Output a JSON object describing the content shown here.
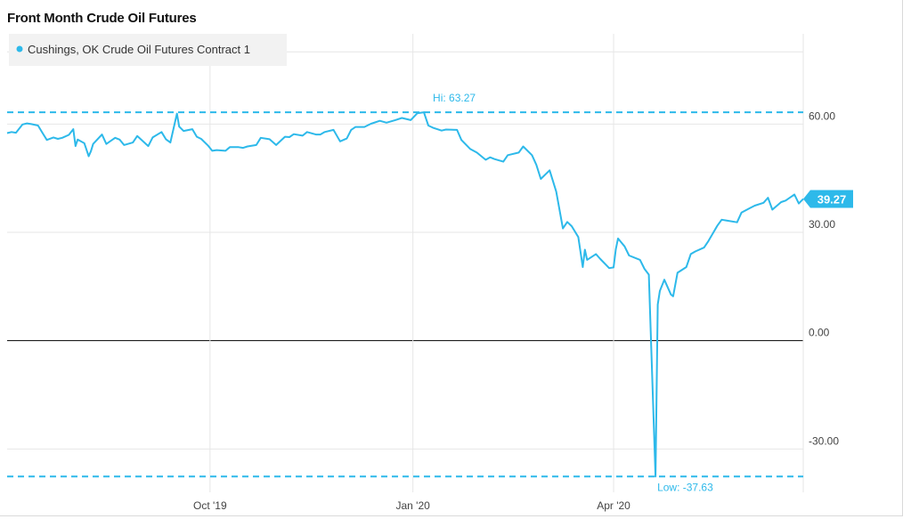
{
  "title": "Front Month Crude Oil Futures",
  "colors": {
    "series": "#2db9ea",
    "grid": "#e6e6e6",
    "zero_line": "#000000",
    "legend_bg": "#f2f2f2"
  },
  "chart_data": {
    "type": "line",
    "title": "Front Month Crude Oil Futures",
    "xlabel": "",
    "ylabel": "",
    "x_ticks": [
      {
        "label": "Oct '19",
        "date": "2019-10-01"
      },
      {
        "label": "Jan '20",
        "date": "2020-01-01"
      },
      {
        "label": "Apr '20",
        "date": "2020-04-01"
      }
    ],
    "y_ticks": [
      {
        "label": "60.00",
        "value": 60
      },
      {
        "label": "30.00",
        "value": 30
      },
      {
        "label": "0.00",
        "value": 0
      },
      {
        "label": "-30.00",
        "value": -30
      }
    ],
    "xlim": [
      "2019-07-01",
      "2020-06-26"
    ],
    "ylim": [
      -42,
      85
    ],
    "grid": true,
    "legend": {
      "position": "top-left",
      "entries": [
        "Cushings, OK Crude Oil Futures Contract 1"
      ]
    },
    "annotations": {
      "high": {
        "label": "Hi: 63.27",
        "value": 63.27,
        "date": "2020-01-06"
      },
      "low": {
        "label": "Low: -37.63",
        "value": -37.63,
        "date": "2020-04-20"
      },
      "last": {
        "label": "39.27",
        "value": 39.27,
        "date": "2020-06-26"
      }
    },
    "series": [
      {
        "name": "Cushings, OK Crude Oil Futures Contract 1",
        "points": [
          [
            "2019-07-01",
            57.5
          ],
          [
            "2019-07-03",
            57.8
          ],
          [
            "2019-07-05",
            57.6
          ],
          [
            "2019-07-08",
            59.9
          ],
          [
            "2019-07-10",
            60.2
          ],
          [
            "2019-07-12",
            60.0
          ],
          [
            "2019-07-15",
            59.6
          ],
          [
            "2019-07-17",
            57.6
          ],
          [
            "2019-07-19",
            55.6
          ],
          [
            "2019-07-22",
            56.3
          ],
          [
            "2019-07-24",
            55.9
          ],
          [
            "2019-07-26",
            56.2
          ],
          [
            "2019-07-29",
            57.0
          ],
          [
            "2019-07-31",
            58.6
          ],
          [
            "2019-08-01",
            53.9
          ],
          [
            "2019-08-02",
            55.7
          ],
          [
            "2019-08-05",
            54.7
          ],
          [
            "2019-08-07",
            51.1
          ],
          [
            "2019-08-08",
            52.5
          ],
          [
            "2019-08-09",
            54.5
          ],
          [
            "2019-08-13",
            57.1
          ],
          [
            "2019-08-15",
            54.5
          ],
          [
            "2019-08-19",
            56.2
          ],
          [
            "2019-08-21",
            55.7
          ],
          [
            "2019-08-23",
            54.2
          ],
          [
            "2019-08-27",
            54.9
          ],
          [
            "2019-08-29",
            56.7
          ],
          [
            "2019-09-03",
            53.9
          ],
          [
            "2019-09-05",
            56.3
          ],
          [
            "2019-09-09",
            57.8
          ],
          [
            "2019-09-11",
            55.8
          ],
          [
            "2019-09-13",
            54.9
          ],
          [
            "2019-09-16",
            62.9
          ],
          [
            "2019-09-17",
            59.3
          ],
          [
            "2019-09-19",
            58.1
          ],
          [
            "2019-09-23",
            58.6
          ],
          [
            "2019-09-25",
            56.5
          ],
          [
            "2019-09-27",
            55.9
          ],
          [
            "2019-09-30",
            54.1
          ],
          [
            "2019-10-02",
            52.6
          ],
          [
            "2019-10-04",
            52.8
          ],
          [
            "2019-10-08",
            52.6
          ],
          [
            "2019-10-10",
            53.6
          ],
          [
            "2019-10-14",
            53.6
          ],
          [
            "2019-10-16",
            53.4
          ],
          [
            "2019-10-18",
            53.8
          ],
          [
            "2019-10-22",
            54.2
          ],
          [
            "2019-10-24",
            56.2
          ],
          [
            "2019-10-28",
            55.8
          ],
          [
            "2019-10-31",
            54.2
          ],
          [
            "2019-11-04",
            56.5
          ],
          [
            "2019-11-06",
            56.4
          ],
          [
            "2019-11-08",
            57.2
          ],
          [
            "2019-11-12",
            56.8
          ],
          [
            "2019-11-14",
            57.8
          ],
          [
            "2019-11-18",
            57.1
          ],
          [
            "2019-11-20",
            57.1
          ],
          [
            "2019-11-22",
            57.8
          ],
          [
            "2019-11-26",
            58.4
          ],
          [
            "2019-11-29",
            55.2
          ],
          [
            "2019-12-02",
            56.0
          ],
          [
            "2019-12-04",
            58.4
          ],
          [
            "2019-12-06",
            59.2
          ],
          [
            "2019-12-10",
            59.2
          ],
          [
            "2019-12-13",
            60.1
          ],
          [
            "2019-12-17",
            60.9
          ],
          [
            "2019-12-20",
            60.4
          ],
          [
            "2019-12-24",
            61.1
          ],
          [
            "2019-12-27",
            61.7
          ],
          [
            "2019-12-31",
            61.1
          ],
          [
            "2020-01-03",
            63.0
          ],
          [
            "2020-01-06",
            63.27
          ],
          [
            "2020-01-08",
            59.6
          ],
          [
            "2020-01-10",
            59.0
          ],
          [
            "2020-01-14",
            58.2
          ],
          [
            "2020-01-16",
            58.5
          ],
          [
            "2020-01-21",
            58.4
          ],
          [
            "2020-01-23",
            55.6
          ],
          [
            "2020-01-27",
            53.1
          ],
          [
            "2020-01-30",
            52.1
          ],
          [
            "2020-02-03",
            50.1
          ],
          [
            "2020-02-05",
            50.8
          ],
          [
            "2020-02-07",
            50.3
          ],
          [
            "2020-02-11",
            49.6
          ],
          [
            "2020-02-13",
            51.4
          ],
          [
            "2020-02-18",
            52.1
          ],
          [
            "2020-02-20",
            53.8
          ],
          [
            "2020-02-24",
            51.4
          ],
          [
            "2020-02-26",
            48.7
          ],
          [
            "2020-02-28",
            44.8
          ],
          [
            "2020-03-03",
            47.2
          ],
          [
            "2020-03-06",
            41.3
          ],
          [
            "2020-03-09",
            31.1
          ],
          [
            "2020-03-11",
            32.9
          ],
          [
            "2020-03-13",
            31.7
          ],
          [
            "2020-03-16",
            28.7
          ],
          [
            "2020-03-18",
            20.4
          ],
          [
            "2020-03-19",
            25.2
          ],
          [
            "2020-03-20",
            22.4
          ],
          [
            "2020-03-24",
            24.0
          ],
          [
            "2020-03-26",
            22.6
          ],
          [
            "2020-03-30",
            20.1
          ],
          [
            "2020-04-01",
            20.3
          ],
          [
            "2020-04-02",
            25.3
          ],
          [
            "2020-04-03",
            28.3
          ],
          [
            "2020-04-06",
            26.1
          ],
          [
            "2020-04-08",
            23.6
          ],
          [
            "2020-04-13",
            22.4
          ],
          [
            "2020-04-15",
            19.9
          ],
          [
            "2020-04-17",
            18.3
          ],
          [
            "2020-04-20",
            -37.63
          ],
          [
            "2020-04-21",
            10.0
          ],
          [
            "2020-04-22",
            13.8
          ],
          [
            "2020-04-24",
            16.9
          ],
          [
            "2020-04-27",
            12.8
          ],
          [
            "2020-04-28",
            12.3
          ],
          [
            "2020-04-30",
            18.8
          ],
          [
            "2020-05-04",
            20.4
          ],
          [
            "2020-05-06",
            24.0
          ],
          [
            "2020-05-08",
            24.7
          ],
          [
            "2020-05-12",
            25.8
          ],
          [
            "2020-05-14",
            27.6
          ],
          [
            "2020-05-18",
            31.8
          ],
          [
            "2020-05-20",
            33.5
          ],
          [
            "2020-05-22",
            33.3
          ],
          [
            "2020-05-27",
            32.8
          ],
          [
            "2020-05-29",
            35.5
          ],
          [
            "2020-06-02",
            36.8
          ],
          [
            "2020-06-04",
            37.4
          ],
          [
            "2020-06-08",
            38.2
          ],
          [
            "2020-06-10",
            39.6
          ],
          [
            "2020-06-12",
            36.3
          ],
          [
            "2020-06-16",
            38.4
          ],
          [
            "2020-06-18",
            38.8
          ],
          [
            "2020-06-22",
            40.5
          ],
          [
            "2020-06-24",
            38.0
          ],
          [
            "2020-06-26",
            39.27
          ]
        ]
      }
    ]
  }
}
